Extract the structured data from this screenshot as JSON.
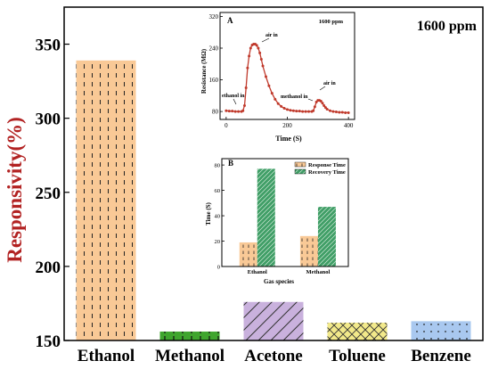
{
  "chart_data": [
    {
      "type": "bar",
      "categories": [
        "Ethanol",
        "Methanol",
        "Acetone",
        "Toluene",
        "Benzene"
      ],
      "values": [
        339,
        156,
        176,
        162,
        163
      ],
      "ylabel": "Responsivity(%)",
      "ylim": [
        150,
        375
      ],
      "yticks": [
        150,
        200,
        250,
        300,
        350
      ],
      "annotation": "1600 ppm",
      "colors": [
        "#f9c996",
        "#3fa52e",
        "#c9b1dd",
        "#f2e98a",
        "#a9c8ef"
      ],
      "patterns": [
        "dashes",
        "ticks",
        "diagonal",
        "crosshatch",
        "dots"
      ]
    },
    {
      "type": "line",
      "panel": "A",
      "annotation": "1600 ppm",
      "xlabel": "Time (S)",
      "ylabel": "Resistance (MΩ)",
      "xlim": [
        -20,
        420
      ],
      "ylim": [
        60,
        330
      ],
      "xticks": [
        0,
        200,
        400
      ],
      "yticks": [
        80,
        160,
        240,
        320
      ],
      "x": [
        0,
        10,
        20,
        30,
        40,
        50,
        55,
        60,
        65,
        70,
        75,
        80,
        85,
        90,
        95,
        100,
        105,
        110,
        115,
        120,
        130,
        140,
        150,
        160,
        170,
        180,
        190,
        200,
        210,
        220,
        230,
        240,
        250,
        260,
        270,
        280,
        285,
        290,
        295,
        300,
        305,
        310,
        315,
        320,
        325,
        330,
        340,
        350,
        360,
        370,
        380,
        390,
        400
      ],
      "y": [
        82,
        81,
        81,
        80,
        80,
        80,
        82,
        95,
        140,
        190,
        220,
        240,
        248,
        250,
        250,
        247,
        240,
        228,
        212,
        195,
        168,
        145,
        126,
        111,
        100,
        93,
        88,
        85,
        83,
        82,
        81,
        81,
        80,
        80,
        80,
        80,
        82,
        92,
        104,
        108,
        108,
        106,
        101,
        95,
        90,
        86,
        82,
        80,
        79,
        78,
        78,
        77,
        77
      ],
      "color": "#c0392b",
      "annotations": [
        "air in",
        "ethanol in",
        "methanol in",
        "air in"
      ]
    },
    {
      "type": "bar",
      "panel": "B",
      "categories": [
        "Ethanol",
        "Methanol"
      ],
      "series": [
        {
          "name": "Response Time",
          "values": [
            19,
            24
          ]
        },
        {
          "name": "Recovery Time",
          "values": [
            77,
            47
          ]
        }
      ],
      "xlabel": "Gas species",
      "ylabel": "Time (S)",
      "ylim": [
        0,
        85
      ],
      "yticks": [
        0,
        20,
        40,
        60,
        80
      ],
      "colors": [
        "#f9c996",
        "#3f9e66"
      ]
    }
  ]
}
